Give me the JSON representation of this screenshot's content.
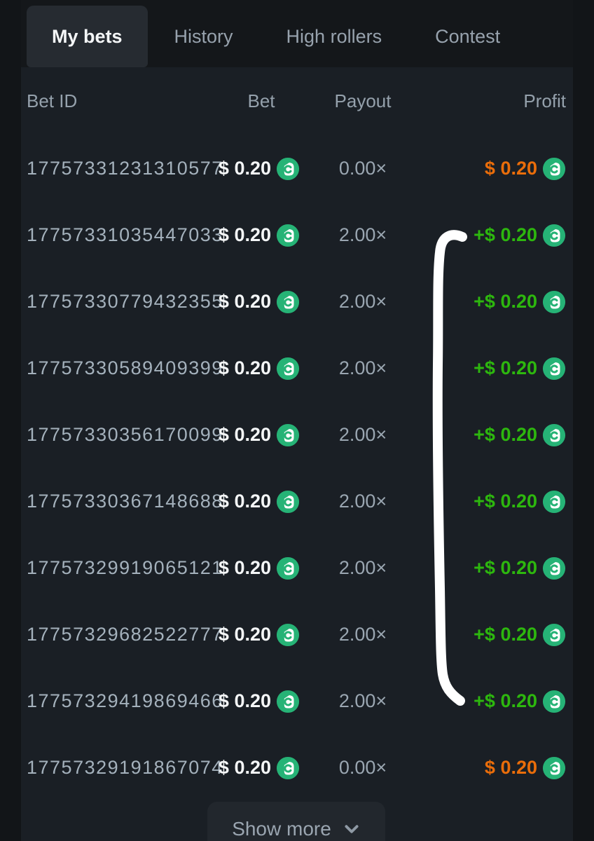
{
  "tabs": [
    {
      "label": "My bets",
      "active": true
    },
    {
      "label": "History",
      "active": false
    },
    {
      "label": "High rollers",
      "active": false
    },
    {
      "label": "Contest",
      "active": false
    }
  ],
  "table": {
    "columns": {
      "bet_id": "Bet ID",
      "bet": "Bet",
      "payout": "Payout",
      "profit": "Profit"
    },
    "rows": [
      {
        "id": "17757331231310577",
        "bet": "$ 0.20",
        "payout": "0.00×",
        "profit": "$ 0.20",
        "result": "loss"
      },
      {
        "id": "17757331035447033",
        "bet": "$ 0.20",
        "payout": "2.00×",
        "profit": "+$ 0.20",
        "result": "win"
      },
      {
        "id": "17757330779432355",
        "bet": "$ 0.20",
        "payout": "2.00×",
        "profit": "+$ 0.20",
        "result": "win"
      },
      {
        "id": "17757330589409399",
        "bet": "$ 0.20",
        "payout": "2.00×",
        "profit": "+$ 0.20",
        "result": "win"
      },
      {
        "id": "17757330356170099",
        "bet": "$ 0.20",
        "payout": "2.00×",
        "profit": "+$ 0.20",
        "result": "win"
      },
      {
        "id": "17757330367148688",
        "bet": "$ 0.20",
        "payout": "2.00×",
        "profit": "+$ 0.20",
        "result": "win"
      },
      {
        "id": "17757329919065121",
        "bet": "$ 0.20",
        "payout": "2.00×",
        "profit": "+$ 0.20",
        "result": "win"
      },
      {
        "id": "17757329682522777",
        "bet": "$ 0.20",
        "payout": "2.00×",
        "profit": "+$ 0.20",
        "result": "win"
      },
      {
        "id": "17757329419869466",
        "bet": "$ 0.20",
        "payout": "2.00×",
        "profit": "+$ 0.20",
        "result": "win"
      },
      {
        "id": "17757329191867074",
        "bet": "$ 0.20",
        "payout": "0.00×",
        "profit": "$ 0.20",
        "result": "loss"
      }
    ]
  },
  "show_more": {
    "label": "Show more"
  },
  "icons": {
    "coin": "bc-coin-icon",
    "chevron": "chevron-down-icon"
  },
  "colors": {
    "profit_win": "#2db70e",
    "profit_loss": "#ea6d0a",
    "coin_green": "#26b376",
    "panel_bg": "#1a1f25",
    "page_bg": "#14171a",
    "active_tab_bg": "#262b31",
    "annotation": "#ffffff"
  }
}
